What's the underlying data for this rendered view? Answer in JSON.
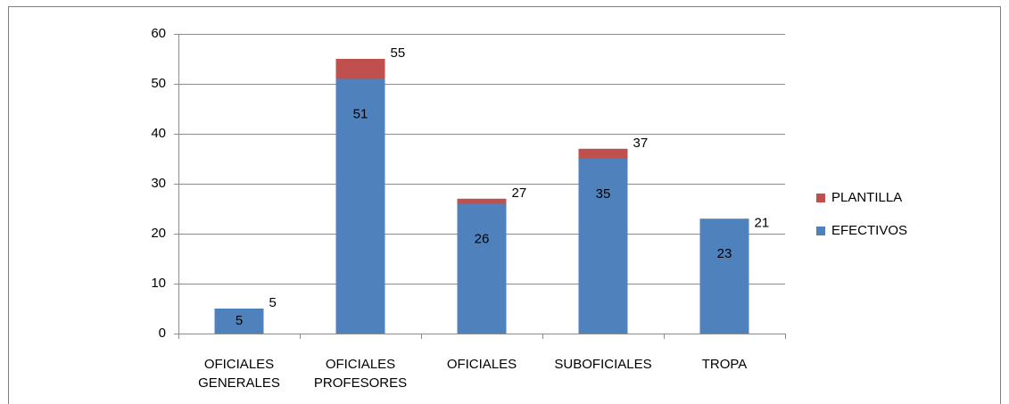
{
  "chart_data": {
    "type": "bar",
    "overlap": true,
    "categories": [
      [
        "OFICIALES",
        "GENERALES"
      ],
      [
        "OFICIALES",
        "PROFESORES"
      ],
      "OFICIALES",
      "SUBOFICIALES",
      "TROPA"
    ],
    "series": [
      {
        "name": "PLANTILLA",
        "color": "#c0504d",
        "values": [
          5,
          55,
          27,
          37,
          21
        ]
      },
      {
        "name": "EFECTIVOS",
        "color": "#4f81bd",
        "values": [
          5,
          51,
          26,
          35,
          23
        ]
      }
    ],
    "ylim": [
      0,
      60
    ],
    "yticks": [
      0,
      10,
      20,
      30,
      40,
      50,
      60
    ],
    "grid": true,
    "legend": "right"
  }
}
